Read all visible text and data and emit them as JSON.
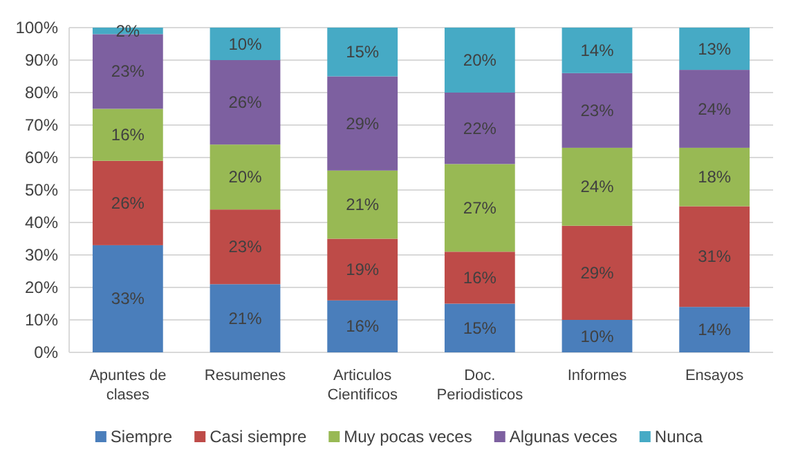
{
  "chart_data": {
    "type": "bar",
    "stacked": true,
    "categories": [
      "Apuntes de clases",
      "Resumenes",
      "Articulos Cientificos",
      "Doc. Periodisticos",
      "Informes",
      "Ensayos"
    ],
    "series": [
      {
        "name": "Siempre",
        "color": "#4a7ebb",
        "values": [
          33,
          21,
          16,
          15,
          10,
          14
        ],
        "value_labels": [
          "33%",
          "21%",
          "16%",
          "15%",
          "10%",
          "14%"
        ]
      },
      {
        "name": "Casi siempre",
        "color": "#be4b48",
        "values": [
          26,
          23,
          19,
          16,
          29,
          31
        ],
        "value_labels": [
          "26%",
          "23%",
          "19%",
          "16%",
          "29%",
          "31%"
        ]
      },
      {
        "name": "Muy pocas veces",
        "color": "#98b954",
        "values": [
          16,
          20,
          21,
          27,
          24,
          18
        ],
        "value_labels": [
          "16%",
          "20%",
          "21%",
          "27%",
          "24%",
          "18%"
        ]
      },
      {
        "name": "Algunas veces",
        "color": "#7d60a0",
        "values": [
          23,
          26,
          29,
          22,
          23,
          24
        ],
        "value_labels": [
          "23%",
          "26%",
          "29%",
          "22%",
          "23%",
          "24%"
        ]
      },
      {
        "name": "Nunca",
        "color": "#46aac5",
        "values": [
          2,
          10,
          15,
          20,
          14,
          13
        ],
        "value_labels": [
          "2%",
          "10%",
          "15%",
          "20%",
          "14%",
          "13%"
        ]
      }
    ],
    "ylim": [
      0,
      100
    ],
    "yticks": [
      {
        "value": 0,
        "label": "0%"
      },
      {
        "value": 10,
        "label": "10%"
      },
      {
        "value": 20,
        "label": "20%"
      },
      {
        "value": 30,
        "label": "30%"
      },
      {
        "value": 40,
        "label": "40%"
      },
      {
        "value": 50,
        "label": "50%"
      },
      {
        "value": 60,
        "label": "60%"
      },
      {
        "value": 70,
        "label": "70%"
      },
      {
        "value": 80,
        "label": "80%"
      },
      {
        "value": 90,
        "label": "90%"
      },
      {
        "value": 100,
        "label": "100%"
      }
    ],
    "grid": "y",
    "legend": "bottom"
  }
}
